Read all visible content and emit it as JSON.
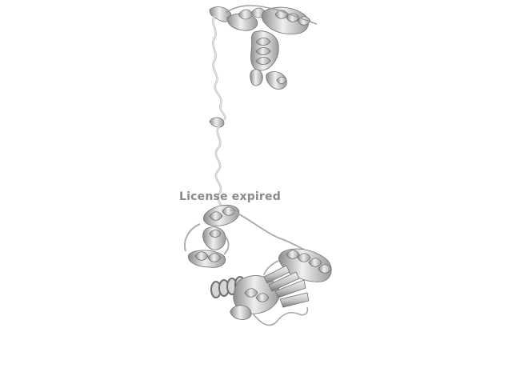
{
  "watermark": {
    "text": "License expired"
  },
  "colors": {
    "background": "#ffffff",
    "structure_light": "#e6e6e6",
    "structure_mid": "#bdbdbd",
    "structure_dark": "#6f6f6f",
    "watermark": "#8a8a8a"
  }
}
